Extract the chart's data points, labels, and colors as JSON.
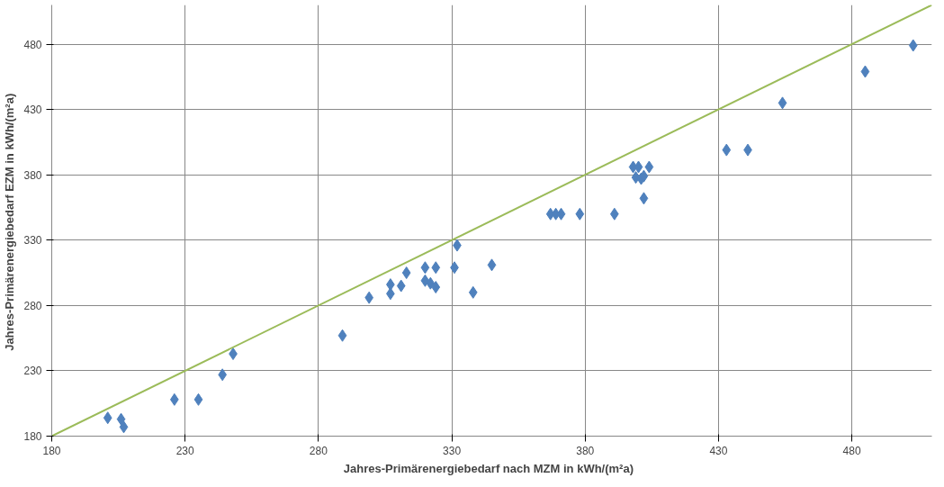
{
  "chart_data": {
    "type": "scatter",
    "xlabel": "Jahres-Primärenergiebedarf nach  MZM  in kWh/(m²a)",
    "ylabel": "Jahres-Primärenergiebedarf EZM  in kWh/(m²a)",
    "xlim": [
      180,
      510
    ],
    "ylim": [
      180,
      510
    ],
    "xticks": [
      180,
      230,
      280,
      330,
      380,
      430,
      480
    ],
    "yticks": [
      180,
      230,
      280,
      330,
      380,
      430,
      480
    ],
    "grid": true,
    "series": [
      {
        "marker": "diamond",
        "color": "#4f81bd",
        "x": [
          201,
          206,
          207,
          226,
          235,
          244,
          248,
          289,
          299,
          307,
          307,
          311,
          313,
          320,
          320,
          322,
          324,
          324,
          331,
          332,
          338,
          345,
          367,
          369,
          371,
          378,
          391,
          398,
          400,
          399,
          401,
          402,
          404,
          402,
          433,
          441,
          454,
          485,
          503
        ],
        "values": [
          194,
          193,
          187,
          208,
          208,
          227,
          243,
          257,
          286,
          289,
          296,
          295,
          305,
          309,
          299,
          297,
          294,
          309,
          309,
          326,
          290,
          311,
          350,
          350,
          350,
          350,
          350,
          386,
          386,
          378,
          377,
          379,
          386,
          362,
          399,
          399,
          435,
          459,
          479
        ]
      },
      {
        "type": "line",
        "marker": "none",
        "color": "#9bbb59",
        "x": [
          180,
          510
        ],
        "values": [
          180,
          510
        ]
      }
    ]
  }
}
